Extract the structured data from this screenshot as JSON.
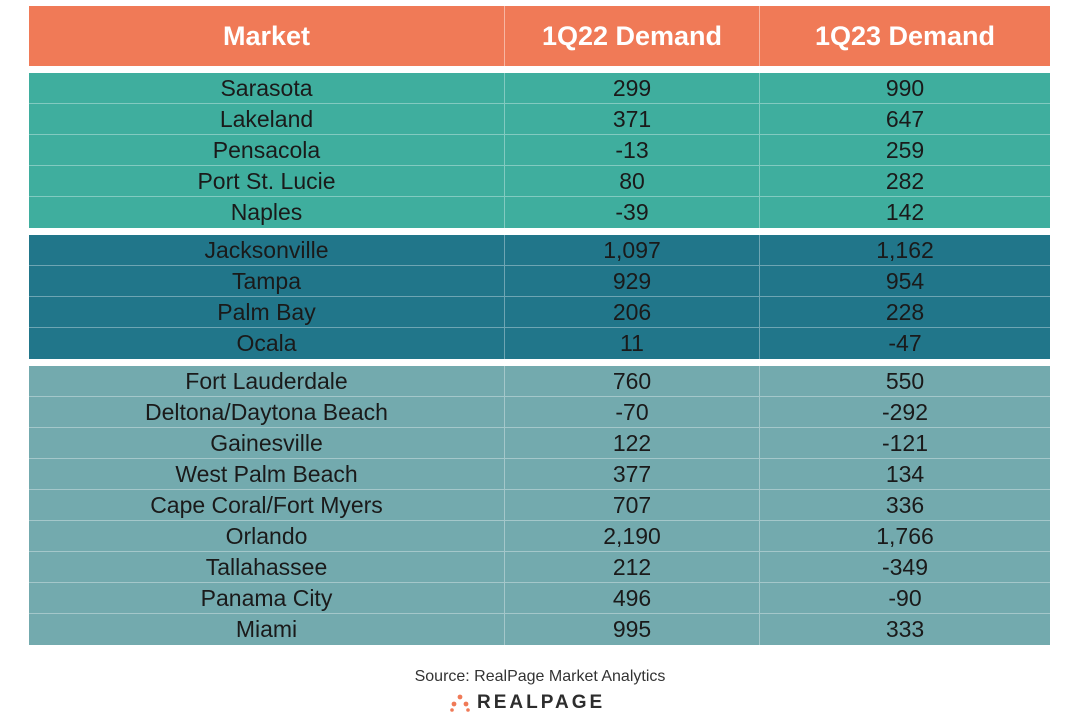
{
  "table": {
    "headers": [
      "Market",
      "1Q22 Demand",
      "1Q23 Demand"
    ],
    "groups": [
      {
        "color": "#3fae9e",
        "rows": [
          [
            "Sarasota",
            "299",
            "990"
          ],
          [
            "Lakeland",
            "371",
            "647"
          ],
          [
            "Pensacola",
            "-13",
            "259"
          ],
          [
            "Port St. Lucie",
            "80",
            "282"
          ],
          [
            "Naples",
            "-39",
            "142"
          ]
        ]
      },
      {
        "color": "#21768a",
        "rows": [
          [
            "Jacksonville",
            "1,097",
            "1,162"
          ],
          [
            "Tampa",
            "929",
            "954"
          ],
          [
            "Palm Bay",
            "206",
            "228"
          ],
          [
            "Ocala",
            "11",
            "-47"
          ]
        ]
      },
      {
        "color": "#73aaae",
        "rows": [
          [
            "Fort Lauderdale",
            "760",
            "550"
          ],
          [
            "Deltona/Daytona Beach",
            "-70",
            "-292"
          ],
          [
            "Gainesville",
            "122",
            "-121"
          ],
          [
            "West Palm Beach",
            "377",
            "134"
          ],
          [
            "Cape Coral/Fort Myers",
            "707",
            "336"
          ],
          [
            "Orlando",
            "2,190",
            "1,766"
          ],
          [
            "Tallahassee",
            "212",
            "-349"
          ],
          [
            "Panama City",
            "496",
            "-90"
          ],
          [
            "Miami",
            "995",
            "333"
          ]
        ]
      }
    ]
  },
  "footer": {
    "source": "Source: RealPage Market Analytics",
    "logo_text": "REALPAGE",
    "logo_icon": "realpage-dots-icon",
    "accent": "#f07a57"
  }
}
